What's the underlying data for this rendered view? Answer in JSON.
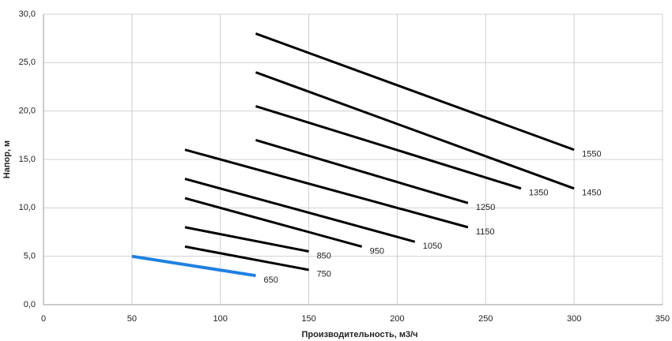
{
  "chart_data": {
    "type": "line",
    "x_label": "Производительность,  м3/ч",
    "y_label": "Напор, м",
    "xlim": [
      0,
      350
    ],
    "xticks": [
      0,
      50,
      100,
      150,
      200,
      250,
      300,
      350
    ],
    "ylim": [
      0,
      30
    ],
    "yticks": [
      {
        "value": 0,
        "label": "0,0"
      },
      {
        "value": 5,
        "label": "5,0"
      },
      {
        "value": 10,
        "label": "10,0"
      },
      {
        "value": 15,
        "label": "15,0"
      },
      {
        "value": 20,
        "label": "20,0"
      },
      {
        "value": 25,
        "label": "25,0"
      },
      {
        "value": 30,
        "label": "30,0"
      }
    ],
    "grid": true,
    "series": [
      {
        "name": "650",
        "color": "#1f80e0",
        "x": [
          50,
          120
        ],
        "values": [
          5.0,
          3.0
        ]
      },
      {
        "name": "750",
        "color": "#000000",
        "x": [
          80,
          150
        ],
        "values": [
          6.0,
          3.6
        ]
      },
      {
        "name": "850",
        "color": "#000000",
        "x": [
          80,
          150
        ],
        "values": [
          8.0,
          5.5
        ]
      },
      {
        "name": "950",
        "color": "#000000",
        "x": [
          80,
          180
        ],
        "values": [
          11.0,
          6.0
        ]
      },
      {
        "name": "1050",
        "color": "#000000",
        "x": [
          80,
          210
        ],
        "values": [
          13.0,
          6.5
        ]
      },
      {
        "name": "1150",
        "color": "#000000",
        "x": [
          80,
          240
        ],
        "values": [
          16.0,
          8.0
        ]
      },
      {
        "name": "1250",
        "color": "#000000",
        "x": [
          120,
          240
        ],
        "values": [
          17.0,
          10.5
        ]
      },
      {
        "name": "1350",
        "color": "#000000",
        "x": [
          120,
          270
        ],
        "values": [
          20.5,
          12.0
        ]
      },
      {
        "name": "1450",
        "color": "#000000",
        "x": [
          120,
          300
        ],
        "values": [
          24.0,
          12.0
        ]
      },
      {
        "name": "1550",
        "color": "#000000",
        "x": [
          120,
          300
        ],
        "values": [
          28.0,
          16.0
        ]
      }
    ]
  }
}
